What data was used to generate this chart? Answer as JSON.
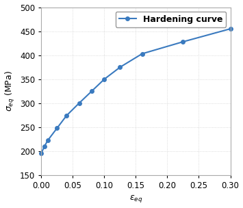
{
  "x": [
    0.0,
    0.005,
    0.01,
    0.025,
    0.04,
    0.06,
    0.08,
    0.1,
    0.125,
    0.16,
    0.225,
    0.3
  ],
  "y": [
    196,
    210,
    222,
    248,
    274,
    300,
    325,
    350,
    375,
    403,
    428,
    455
  ],
  "line_color": "#3a7abf",
  "marker": "o",
  "markersize": 4.0,
  "linewidth": 1.5,
  "legend_label": "Hardening curve",
  "xlabel": "$\\varepsilon_{eq}$",
  "ylabel": "$\\sigma_{eq}$ (MPa)",
  "xlim": [
    0,
    0.3
  ],
  "ylim": [
    150,
    500
  ],
  "xticks": [
    0,
    0.05,
    0.1,
    0.15,
    0.2,
    0.25,
    0.3
  ],
  "yticks": [
    150,
    200,
    250,
    300,
    350,
    400,
    450,
    500
  ],
  "grid_color": "#d0d0d0",
  "background_color": "#ffffff",
  "label_fontsize": 9,
  "tick_fontsize": 8.5,
  "legend_fontsize": 9
}
